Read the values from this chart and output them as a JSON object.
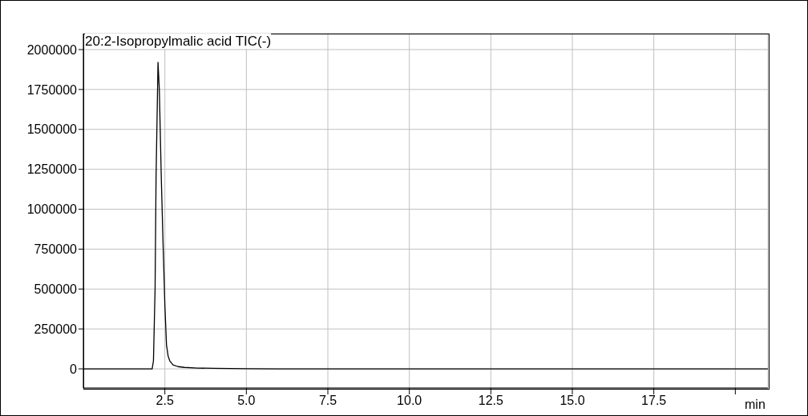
{
  "chart_data": {
    "type": "line",
    "title": "20:2-Isopropylmalic acid TIC(-)",
    "xlabel": "min",
    "x": [
      0,
      1,
      2,
      2.11,
      2.15,
      2.2,
      2.23,
      2.29,
      2.33,
      2.39,
      2.45,
      2.5,
      2.55,
      2.6,
      2.65,
      2.75,
      2.9,
      3.1,
      3.5,
      4,
      5,
      6,
      10,
      15,
      21
    ],
    "series": [
      {
        "color": "#000000",
        "values": [
          0,
          0,
          0,
          0,
          50000,
          500000,
          1200000,
          1920000,
          1750000,
          1200000,
          750000,
          400000,
          150000,
          80000,
          50000,
          25000,
          14000,
          9000,
          5000,
          3000,
          1000,
          0,
          0,
          0,
          0
        ]
      }
    ],
    "xlim": [
      0,
      21
    ],
    "xticks": [
      2.5,
      {
        "value": 5,
        "label": "5.0"
      },
      7.5,
      {
        "value": 10,
        "label": "10.0"
      },
      12.5,
      {
        "value": 15,
        "label": "15.0"
      },
      17.5,
      {
        "value": 20,
        "label": null
      }
    ],
    "ylim": [
      -120000,
      2100000
    ],
    "yticks": [
      0,
      250000,
      500000,
      750000,
      1000000,
      1250000,
      1500000,
      1750000,
      2000000
    ],
    "grid": true,
    "legend": false,
    "marker": "none",
    "line_style": "solid"
  }
}
